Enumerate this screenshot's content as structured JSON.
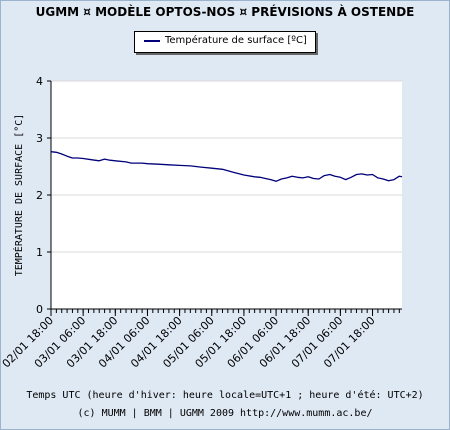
{
  "header": {
    "title": "UGMM ¤ MODÈLE OPTOS-NOS ¤ PRÉVISIONS À OSTENDE"
  },
  "footer": {
    "xlabel": "Temps UTC (heure d'hiver: heure locale=UTC+1 ; heure d'été: UTC+2)",
    "credit": "(c) MUMM | BMM | UGMM 2009 http://www.mumm.ac.be/"
  },
  "colors": {
    "line": "#00007a",
    "background": "#dfe9f4",
    "plot_area": "#ffffff",
    "grid": "#d8d8d8"
  },
  "chart_data": {
    "type": "line",
    "title": "UGMM ¤ MODÈLE OPTOS-NOS ¤ PRÉVISIONS À OSTENDE",
    "xlabel": "Temps UTC (heure d'hiver: heure locale=UTC+1 ; heure d'été: UTC+2)",
    "ylabel": "TEMPÉRATURE DE SURFACE [°C]",
    "ylim": [
      0,
      4
    ],
    "yticks": [
      0,
      1,
      2,
      3,
      4
    ],
    "xlim_hours": [
      0,
      131
    ],
    "xtick_labels": [
      "02/01 18:00",
      "03/01 06:00",
      "03/01 18:00",
      "04/01 06:00",
      "04/01 18:00",
      "05/01 06:00",
      "05/01 18:00",
      "06/01 06:00",
      "06/01 18:00",
      "07/01 06:00",
      "07/01 18:00"
    ],
    "xtick_hours": [
      0,
      12,
      24,
      36,
      48,
      60,
      72,
      84,
      96,
      108,
      120
    ],
    "grid": true,
    "legend_position": "top-center",
    "series": [
      {
        "name": "Température de surface [ºC]",
        "x_hours": [
          0,
          2,
          4,
          6,
          8,
          10,
          12,
          15,
          18,
          20,
          22,
          24,
          28,
          30,
          34,
          36,
          40,
          44,
          48,
          52,
          56,
          60,
          64,
          68,
          72,
          76,
          78,
          80,
          82,
          84,
          86,
          88,
          90,
          92,
          94,
          96,
          98,
          100,
          102,
          104,
          106,
          108,
          110,
          112,
          114,
          116,
          118,
          120,
          122,
          124,
          126,
          128,
          130,
          131
        ],
        "values": [
          2.76,
          2.75,
          2.72,
          2.68,
          2.65,
          2.65,
          2.64,
          2.62,
          2.6,
          2.63,
          2.61,
          2.6,
          2.58,
          2.56,
          2.56,
          2.55,
          2.54,
          2.53,
          2.52,
          2.51,
          2.49,
          2.47,
          2.45,
          2.4,
          2.35,
          2.32,
          2.31,
          2.29,
          2.27,
          2.24,
          2.28,
          2.3,
          2.33,
          2.31,
          2.3,
          2.32,
          2.29,
          2.28,
          2.34,
          2.36,
          2.33,
          2.31,
          2.27,
          2.31,
          2.36,
          2.37,
          2.35,
          2.36,
          2.3,
          2.28,
          2.25,
          2.27,
          2.33,
          2.32
        ]
      }
    ]
  }
}
